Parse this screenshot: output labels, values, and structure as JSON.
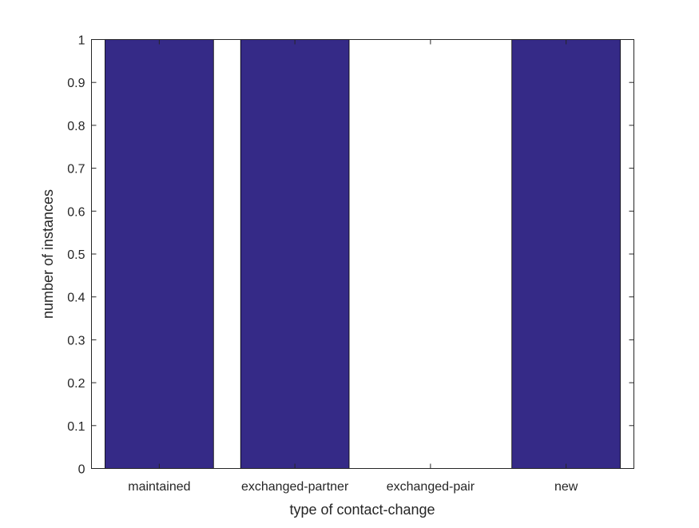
{
  "chart_data": {
    "type": "bar",
    "title": "",
    "xlabel": "type of contact-change",
    "ylabel": "number of instances",
    "categories": [
      "maintained",
      "exchanged-partner",
      "exchanged-pair",
      "new"
    ],
    "values": [
      1,
      1,
      0,
      1
    ],
    "ylim": [
      0,
      1
    ],
    "xlim": [
      0.5,
      4.5
    ],
    "yticks": [
      0,
      0.1,
      0.2,
      0.3,
      0.4,
      0.5,
      0.6,
      0.7,
      0.8,
      0.9,
      1
    ],
    "ytick_labels": [
      "0",
      "0.1",
      "0.2",
      "0.3",
      "0.4",
      "0.5",
      "0.6",
      "0.7",
      "0.8",
      "0.9",
      "1"
    ],
    "bar_width": 0.8,
    "bar_color": "#352a87",
    "grid": false,
    "legend": "none"
  }
}
